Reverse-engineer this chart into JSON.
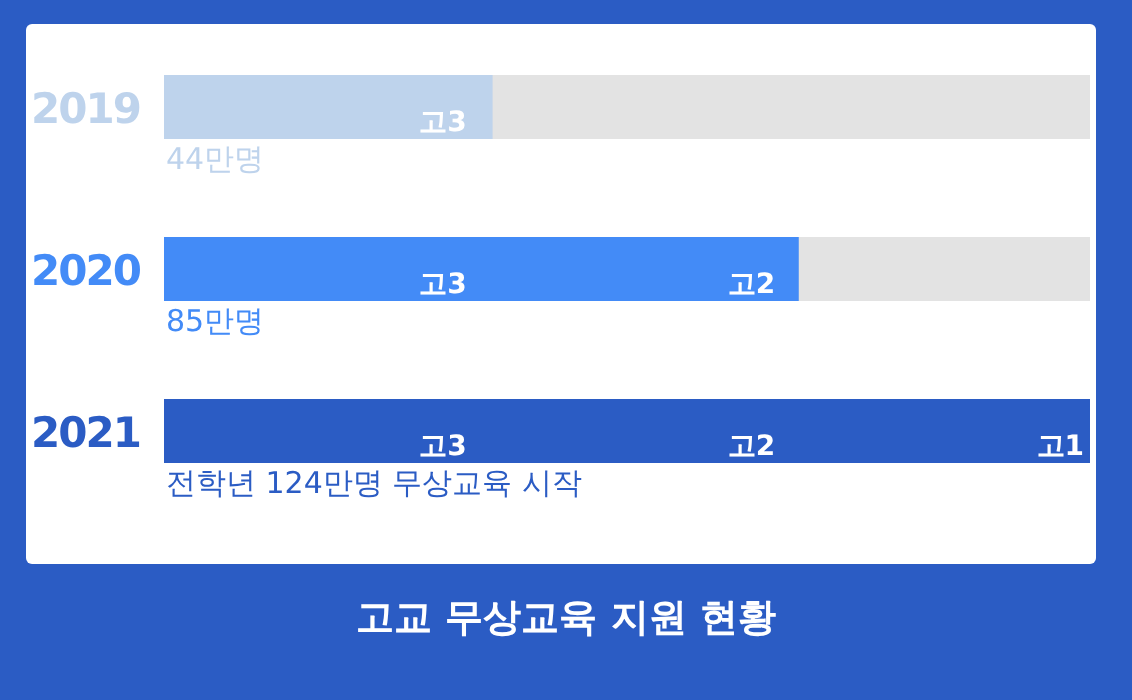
{
  "chart_data": {
    "type": "bar",
    "orientation": "horizontal",
    "title": "고교 무상교육 지원 현황",
    "categories": [
      "2019",
      "2020",
      "2021"
    ],
    "values": [
      44,
      85,
      124
    ],
    "colors": [
      "#bed3ec",
      "#438bf7",
      "#2b5cc4"
    ],
    "value_labels": [
      "44만명",
      "85만명",
      "전학년 124만명 무상교육 시작"
    ],
    "annotations": [
      "고3",
      "고2",
      "고1"
    ],
    "legend": false,
    "grid": false
  }
}
